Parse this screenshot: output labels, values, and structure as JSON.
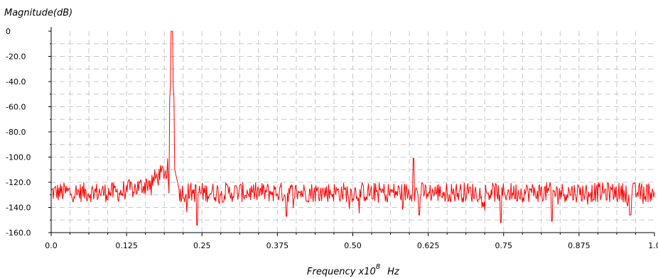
{
  "chart_data": {
    "type": "line",
    "title": "",
    "ylabel": "Magnitude(dB)",
    "xlabel": {
      "prefix": "Frequency x10",
      "exponent": "8",
      "unit": "Hz"
    },
    "xlim": [
      0.0,
      1.0
    ],
    "ylim": [
      -160,
      0
    ],
    "x_ticks": [
      {
        "value": 0.0,
        "label": "0.0"
      },
      {
        "value": 0.125,
        "label": "0.125"
      },
      {
        "value": 0.25,
        "label": "0.25"
      },
      {
        "value": 0.375,
        "label": "0.375"
      },
      {
        "value": 0.5,
        "label": "0.50"
      },
      {
        "value": 0.625,
        "label": "0.625"
      },
      {
        "value": 0.75,
        "label": "0.75"
      },
      {
        "value": 0.875,
        "label": "0.875"
      },
      {
        "value": 1.0,
        "label": "1.0"
      }
    ],
    "y_ticks": [
      {
        "value": 0,
        "label": "0"
      },
      {
        "value": -20,
        "label": "-20.0"
      },
      {
        "value": -40,
        "label": "-40.0"
      },
      {
        "value": -60,
        "label": "-60.0"
      },
      {
        "value": -80,
        "label": "-80.0"
      },
      {
        "value": -100,
        "label": "-100.0"
      },
      {
        "value": -120,
        "label": "-120.0"
      },
      {
        "value": -140,
        "label": "-140.0"
      },
      {
        "value": -160,
        "label": "-160.0"
      }
    ],
    "grid": true,
    "grid_style": "dashed",
    "series": [
      {
        "color": "#ff0000",
        "noise_floor_db": -128,
        "noise_spread_db": 8,
        "features": [
          {
            "kind": "peak",
            "x": 0.2,
            "y": 0
          },
          {
            "kind": "skirt",
            "x_from": 0.12,
            "x_to": 0.195,
            "y_from": -126,
            "y_to": -108
          },
          {
            "kind": "spur",
            "x": 0.601,
            "y": -101
          },
          {
            "kind": "dip",
            "x": 0.242,
            "y": -154
          },
          {
            "kind": "dip",
            "x": 0.39,
            "y": -147
          },
          {
            "kind": "dip",
            "x": 0.61,
            "y": -146
          },
          {
            "kind": "dip",
            "x": 0.745,
            "y": -152
          },
          {
            "kind": "dip",
            "x": 0.83,
            "y": -151
          },
          {
            "kind": "dip",
            "x": 0.96,
            "y": -146
          }
        ]
      }
    ]
  }
}
